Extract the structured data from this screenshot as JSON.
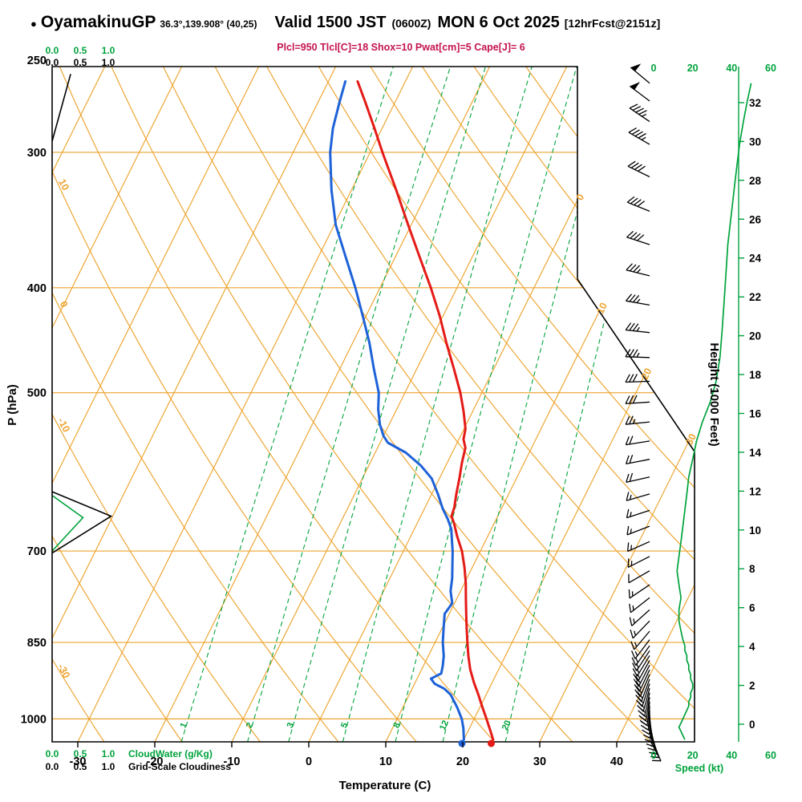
{
  "header": {
    "bullet": "●",
    "station": "OyamakinuGP",
    "coords": "36.3°,139.908° (40,25)",
    "valid": "Valid 1500 JST",
    "valid_zulu": "(0600Z)",
    "valid_date": "MON 6 Oct 2025",
    "forecast_info": "[12hrFcst@2151z]",
    "indices": "Plcl=950 Tlcl[C]=18 Shox=10 Pwat[cm]=5 Cape[J]= 6"
  },
  "axes": {
    "pressure_title": "P (hPa)",
    "pressure_ticks": [
      250,
      300,
      400,
      500,
      700,
      850,
      1000
    ],
    "temperature_title": "Temperature (C)",
    "temperature_ticks": [
      -30,
      -20,
      -10,
      0,
      10,
      20,
      30,
      40
    ],
    "height_title": "Height (1000 Feet)",
    "height_ticks": [
      0,
      2,
      4,
      6,
      8,
      10,
      12,
      14,
      16,
      18,
      20,
      22,
      24,
      26,
      28,
      30,
      32
    ],
    "speed_title": "Speed (kt)",
    "speed_ticks": [
      0,
      20,
      40,
      60
    ],
    "cloud_scale_ticks": [
      "0.0",
      "0.5",
      "1.0"
    ],
    "cloudwater_title": "CloudWater (g/Kg)",
    "cloudiness_title": "Grid-Scale Cloudiness",
    "isotherm_labels": [
      0,
      10,
      20,
      30
    ],
    "dry_adiabat_labels": [
      10,
      0,
      -10,
      -30
    ],
    "mixing_ratio_values": [
      1,
      2,
      3,
      5,
      8,
      12,
      20
    ]
  },
  "chart_data": {
    "type": "skewt_log_p_sounding",
    "pressure_range_hpa": [
      1050,
      250
    ],
    "temperature_axis_range_c": [
      -33,
      40
    ],
    "grid": "isotherms skewed up-right, dry adiabats up-left, dashed mixing-ratio lines, log-p pressure lines",
    "surface_temperature_c": 23.8,
    "surface_dewpoint_c": 20.0,
    "temperature_profile_p_T": [
      [
        1045,
        23.8
      ],
      [
        1020,
        22.6
      ],
      [
        1000,
        21.6
      ],
      [
        975,
        20.3
      ],
      [
        950,
        19.0
      ],
      [
        925,
        17.6
      ],
      [
        900,
        16.3
      ],
      [
        875,
        15.2
      ],
      [
        850,
        14.2
      ],
      [
        825,
        13.2
      ],
      [
        800,
        12.2
      ],
      [
        775,
        11.2
      ],
      [
        750,
        10.2
      ],
      [
        725,
        9.0
      ],
      [
        700,
        7.6
      ],
      [
        678,
        6.0
      ],
      [
        660,
        4.8
      ],
      [
        650,
        4.0
      ],
      [
        638,
        3.8
      ],
      [
        620,
        3.2
      ],
      [
        600,
        2.6
      ],
      [
        580,
        1.9
      ],
      [
        562,
        1.4
      ],
      [
        552,
        0.6
      ],
      [
        540,
        0.2
      ],
      [
        520,
        -1.2
      ],
      [
        500,
        -2.8
      ],
      [
        475,
        -5.2
      ],
      [
        450,
        -7.8
      ],
      [
        425,
        -10.4
      ],
      [
        400,
        -13.4
      ],
      [
        375,
        -16.8
      ],
      [
        350,
        -20.4
      ],
      [
        325,
        -24.2
      ],
      [
        300,
        -28.4
      ],
      [
        285,
        -31.0
      ],
      [
        270,
        -33.8
      ],
      [
        258,
        -36.2
      ]
    ],
    "dewpoint_profile_p_Td": [
      [
        1045,
        20.0
      ],
      [
        1020,
        19.2
      ],
      [
        1000,
        18.4
      ],
      [
        975,
        17.0
      ],
      [
        950,
        15.4
      ],
      [
        938,
        14.2
      ],
      [
        928,
        12.6
      ],
      [
        918,
        11.8
      ],
      [
        908,
        12.8
      ],
      [
        893,
        12.5
      ],
      [
        875,
        12.0
      ],
      [
        850,
        11.0
      ],
      [
        825,
        10.2
      ],
      [
        800,
        9.4
      ],
      [
        782,
        9.7
      ],
      [
        762,
        8.7
      ],
      [
        742,
        8.1
      ],
      [
        722,
        7.3
      ],
      [
        700,
        6.4
      ],
      [
        684,
        5.6
      ],
      [
        668,
        4.8
      ],
      [
        654,
        3.7
      ],
      [
        640,
        2.4
      ],
      [
        620,
        0.8
      ],
      [
        600,
        -1.0
      ],
      [
        584,
        -3.2
      ],
      [
        568,
        -6.0
      ],
      [
        556,
        -9.0
      ],
      [
        548,
        -10.0
      ],
      [
        535,
        -11.2
      ],
      [
        518,
        -12.4
      ],
      [
        500,
        -13.4
      ],
      [
        475,
        -15.6
      ],
      [
        450,
        -17.8
      ],
      [
        425,
        -20.4
      ],
      [
        400,
        -23.2
      ],
      [
        375,
        -26.4
      ],
      [
        350,
        -29.8
      ],
      [
        325,
        -32.6
      ],
      [
        300,
        -35.2
      ],
      [
        285,
        -36.4
      ],
      [
        270,
        -37.2
      ],
      [
        258,
        -37.8
      ]
    ],
    "wind_profile_p_dir_kt": [
      [
        1045,
        152,
        16
      ],
      [
        1036,
        156,
        15
      ],
      [
        1027,
        160,
        14
      ],
      [
        1018,
        164,
        13
      ],
      [
        1009,
        168,
        14
      ],
      [
        1000,
        172,
        15
      ],
      [
        991,
        176,
        16
      ],
      [
        982,
        180,
        17
      ],
      [
        973,
        183,
        18
      ],
      [
        964,
        186,
        18
      ],
      [
        955,
        189,
        19
      ],
      [
        946,
        192,
        19
      ],
      [
        937,
        195,
        20
      ],
      [
        928,
        198,
        20
      ],
      [
        919,
        200,
        19
      ],
      [
        910,
        203,
        19
      ],
      [
        901,
        205,
        18
      ],
      [
        892,
        207,
        18
      ],
      [
        883,
        209,
        17
      ],
      [
        874,
        211,
        17
      ],
      [
        865,
        213,
        16
      ],
      [
        856,
        215,
        16
      ],
      [
        845,
        217,
        15
      ],
      [
        830,
        220,
        14
      ],
      [
        812,
        224,
        13
      ],
      [
        793,
        228,
        13
      ],
      [
        773,
        232,
        14
      ],
      [
        752,
        236,
        13
      ],
      [
        730,
        240,
        12
      ],
      [
        708,
        243,
        13
      ],
      [
        686,
        246,
        14
      ],
      [
        664,
        249,
        15
      ],
      [
        642,
        252,
        16
      ],
      [
        620,
        254,
        17
      ],
      [
        598,
        257,
        18
      ],
      [
        576,
        259,
        20
      ],
      [
        554,
        261,
        22
      ],
      [
        532,
        264,
        25
      ],
      [
        510,
        266,
        29
      ],
      [
        488,
        268,
        32
      ],
      [
        464,
        272,
        34
      ],
      [
        440,
        276,
        35
      ],
      [
        415,
        280,
        36
      ],
      [
        390,
        284,
        37
      ],
      [
        365,
        288,
        38
      ],
      [
        340,
        292,
        40
      ],
      [
        316,
        296,
        42
      ],
      [
        295,
        300,
        44
      ],
      [
        281,
        304,
        46
      ],
      [
        269,
        307,
        48
      ],
      [
        259,
        310,
        50
      ]
    ],
    "cloudiness_profile_p_frac": [
      [
        [
          703,
          0.0
        ],
        [
          650,
          1.05
        ],
        [
          617,
          0.0
        ]
      ],
      [
        [
          293,
          0.0
        ],
        [
          254,
          0.33
        ]
      ]
    ],
    "cloudwater_profile_p_gkg": [
      [
        700,
        0.0
      ],
      [
        652,
        0.55
      ],
      [
        622,
        0.0
      ]
    ]
  },
  "colors": {
    "grid_orange": "#eda32d",
    "mixing_green": "#00a33c",
    "temperature_red": "#e41b17",
    "dewpoint_blue": "#1e62d8",
    "indices_text": "#c41450",
    "barb_black": "#000000"
  }
}
